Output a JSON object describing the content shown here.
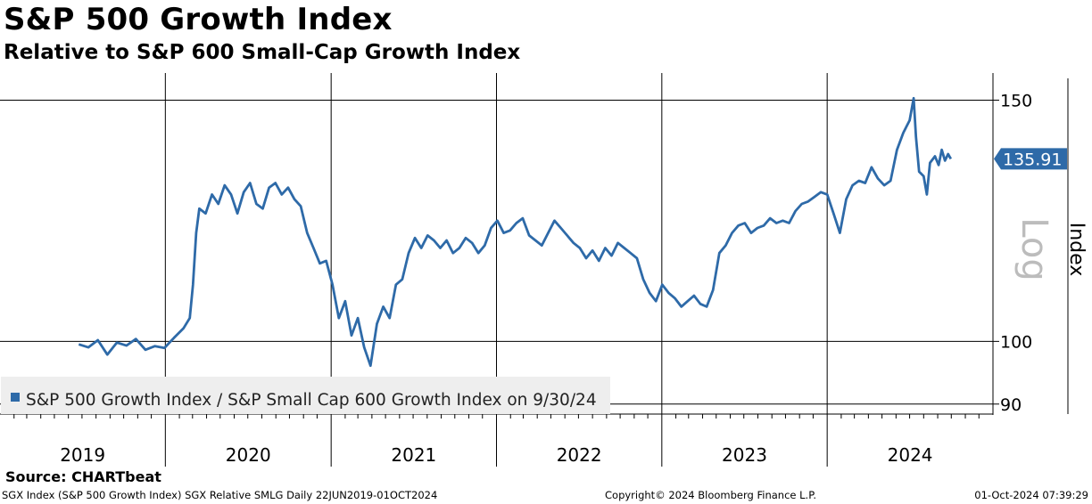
{
  "header": {
    "title": "S&P 500 Growth Index",
    "subtitle": "Relative to S&P 600 Small-Cap Growth Index"
  },
  "chart_data": {
    "type": "line",
    "title": "S&P 500 Growth Index",
    "subtitle": "Relative to S&P 600 Small-Cap Growth Index",
    "y_scale": "log",
    "ylim": [
      88.5,
      157
    ],
    "xlim": [
      "2019-01-01",
      "2024-12-31"
    ],
    "yticks": [
      {
        "value": 150,
        "label": "150"
      },
      {
        "value": 100,
        "label": "100"
      },
      {
        "value": 90,
        "label": "90"
      }
    ],
    "ylabel_scale": "Log",
    "ylabel": "Index",
    "year_labels": [
      "2019",
      "2020",
      "2021",
      "2022",
      "2023",
      "2024"
    ],
    "legend_label": "S&P 500 Growth Index / S&P Small Cap 600 Growth Index on 9/30/24",
    "legend_position": "bottom-left",
    "grid": true,
    "last_value": 135.91,
    "last_value_label": "135.91",
    "line_color": "#2e6aa8",
    "badge_color": "#2e6aa8",
    "series": [
      {
        "name": "S&P 500 Growth Index / S&P Small Cap 600 Growth Index on 9/30/24",
        "points": [
          [
            "2019-06-24",
            99.5
          ],
          [
            "2019-07-15",
            99.0
          ],
          [
            "2019-08-05",
            100.2
          ],
          [
            "2019-08-26",
            97.8
          ],
          [
            "2019-09-16",
            99.8
          ],
          [
            "2019-10-07",
            99.3
          ],
          [
            "2019-10-28",
            100.4
          ],
          [
            "2019-11-18",
            98.6
          ],
          [
            "2019-12-09",
            99.2
          ],
          [
            "2019-12-30",
            98.9
          ],
          [
            "2020-01-20",
            100.6
          ],
          [
            "2020-02-10",
            102.2
          ],
          [
            "2020-02-24",
            104.0
          ],
          [
            "2020-03-02",
            110.0
          ],
          [
            "2020-03-09",
            120.0
          ],
          [
            "2020-03-16",
            125.0
          ],
          [
            "2020-03-30",
            124.0
          ],
          [
            "2020-04-13",
            128.0
          ],
          [
            "2020-04-27",
            126.0
          ],
          [
            "2020-05-11",
            130.0
          ],
          [
            "2020-05-25",
            128.0
          ],
          [
            "2020-06-08",
            124.0
          ],
          [
            "2020-06-22",
            128.5
          ],
          [
            "2020-07-06",
            130.5
          ],
          [
            "2020-07-20",
            126.0
          ],
          [
            "2020-08-03",
            125.0
          ],
          [
            "2020-08-17",
            129.5
          ],
          [
            "2020-08-31",
            130.5
          ],
          [
            "2020-09-14",
            128.0
          ],
          [
            "2020-09-28",
            129.5
          ],
          [
            "2020-10-12",
            127.0
          ],
          [
            "2020-10-26",
            125.5
          ],
          [
            "2020-11-09",
            120.0
          ],
          [
            "2020-11-23",
            117.0
          ],
          [
            "2020-12-07",
            114.0
          ],
          [
            "2020-12-21",
            114.5
          ],
          [
            "2021-01-04",
            110.0
          ],
          [
            "2021-01-18",
            104.0
          ],
          [
            "2021-02-01",
            107.0
          ],
          [
            "2021-02-15",
            101.0
          ],
          [
            "2021-03-01",
            104.0
          ],
          [
            "2021-03-15",
            99.0
          ],
          [
            "2021-03-29",
            96.0
          ],
          [
            "2021-04-12",
            103.0
          ],
          [
            "2021-04-26",
            106.0
          ],
          [
            "2021-05-10",
            104.0
          ],
          [
            "2021-05-24",
            110.0
          ],
          [
            "2021-06-07",
            111.0
          ],
          [
            "2021-06-21",
            116.0
          ],
          [
            "2021-07-05",
            119.0
          ],
          [
            "2021-07-19",
            117.0
          ],
          [
            "2021-08-02",
            119.5
          ],
          [
            "2021-08-16",
            118.5
          ],
          [
            "2021-08-30",
            117.0
          ],
          [
            "2021-09-13",
            118.5
          ],
          [
            "2021-09-27",
            116.0
          ],
          [
            "2021-10-11",
            117.0
          ],
          [
            "2021-10-25",
            119.0
          ],
          [
            "2021-11-08",
            118.0
          ],
          [
            "2021-11-22",
            116.0
          ],
          [
            "2021-12-06",
            117.5
          ],
          [
            "2021-12-20",
            121.0
          ],
          [
            "2022-01-03",
            122.5
          ],
          [
            "2022-01-17",
            120.0
          ],
          [
            "2022-01-31",
            120.5
          ],
          [
            "2022-02-14",
            122.0
          ],
          [
            "2022-02-28",
            123.0
          ],
          [
            "2022-03-14",
            119.5
          ],
          [
            "2022-03-28",
            118.5
          ],
          [
            "2022-04-11",
            117.5
          ],
          [
            "2022-04-25",
            120.0
          ],
          [
            "2022-05-09",
            122.5
          ],
          [
            "2022-05-23",
            121.0
          ],
          [
            "2022-06-06",
            119.5
          ],
          [
            "2022-06-20",
            118.0
          ],
          [
            "2022-07-04",
            117.0
          ],
          [
            "2022-07-18",
            115.0
          ],
          [
            "2022-08-01",
            116.5
          ],
          [
            "2022-08-15",
            114.5
          ],
          [
            "2022-08-29",
            117.0
          ],
          [
            "2022-09-12",
            115.5
          ],
          [
            "2022-09-26",
            118.0
          ],
          [
            "2022-10-10",
            117.0
          ],
          [
            "2022-10-24",
            116.0
          ],
          [
            "2022-11-07",
            115.0
          ],
          [
            "2022-11-21",
            111.0
          ],
          [
            "2022-12-05",
            108.5
          ],
          [
            "2022-12-19",
            107.0
          ],
          [
            "2023-01-02",
            110.0
          ],
          [
            "2023-01-16",
            108.5
          ],
          [
            "2023-01-30",
            107.5
          ],
          [
            "2023-02-13",
            106.0
          ],
          [
            "2023-02-27",
            107.0
          ],
          [
            "2023-03-13",
            108.0
          ],
          [
            "2023-03-27",
            106.5
          ],
          [
            "2023-04-10",
            106.0
          ],
          [
            "2023-04-24",
            109.0
          ],
          [
            "2023-05-08",
            116.0
          ],
          [
            "2023-05-22",
            117.5
          ],
          [
            "2023-06-05",
            120.0
          ],
          [
            "2023-06-19",
            121.5
          ],
          [
            "2023-07-03",
            122.0
          ],
          [
            "2023-07-17",
            120.0
          ],
          [
            "2023-07-31",
            121.0
          ],
          [
            "2023-08-14",
            121.5
          ],
          [
            "2023-08-28",
            123.0
          ],
          [
            "2023-09-11",
            122.0
          ],
          [
            "2023-09-25",
            122.5
          ],
          [
            "2023-10-09",
            122.0
          ],
          [
            "2023-10-23",
            124.5
          ],
          [
            "2023-11-06",
            126.0
          ],
          [
            "2023-11-20",
            126.5
          ],
          [
            "2023-12-04",
            127.5
          ],
          [
            "2023-12-18",
            128.5
          ],
          [
            "2024-01-01",
            128.0
          ],
          [
            "2024-01-15",
            124.0
          ],
          [
            "2024-01-29",
            120.0
          ],
          [
            "2024-02-12",
            127.0
          ],
          [
            "2024-02-26",
            130.0
          ],
          [
            "2024-03-11",
            131.0
          ],
          [
            "2024-03-25",
            130.5
          ],
          [
            "2024-04-08",
            134.0
          ],
          [
            "2024-04-22",
            131.5
          ],
          [
            "2024-05-06",
            130.0
          ],
          [
            "2024-05-20",
            131.0
          ],
          [
            "2024-06-03",
            138.0
          ],
          [
            "2024-06-17",
            142.0
          ],
          [
            "2024-07-01",
            145.0
          ],
          [
            "2024-07-10",
            150.5
          ],
          [
            "2024-07-15",
            141.0
          ],
          [
            "2024-07-22",
            133.0
          ],
          [
            "2024-08-01",
            132.0
          ],
          [
            "2024-08-08",
            128.0
          ],
          [
            "2024-08-15",
            135.0
          ],
          [
            "2024-08-26",
            136.5
          ],
          [
            "2024-09-03",
            134.5
          ],
          [
            "2024-09-10",
            138.0
          ],
          [
            "2024-09-17",
            135.5
          ],
          [
            "2024-09-24",
            137.0
          ],
          [
            "2024-09-30",
            135.91
          ]
        ]
      }
    ]
  },
  "source": "Source: CHARTbeat",
  "footer": {
    "left": "SGX Index (S&P 500 Growth Index) SGX Relative SMLG  Daily 22JUN2019-01OCT2024",
    "center": "Copyright© 2024 Bloomberg Finance L.P.",
    "right": "01-Oct-2024 07:39:29"
  }
}
